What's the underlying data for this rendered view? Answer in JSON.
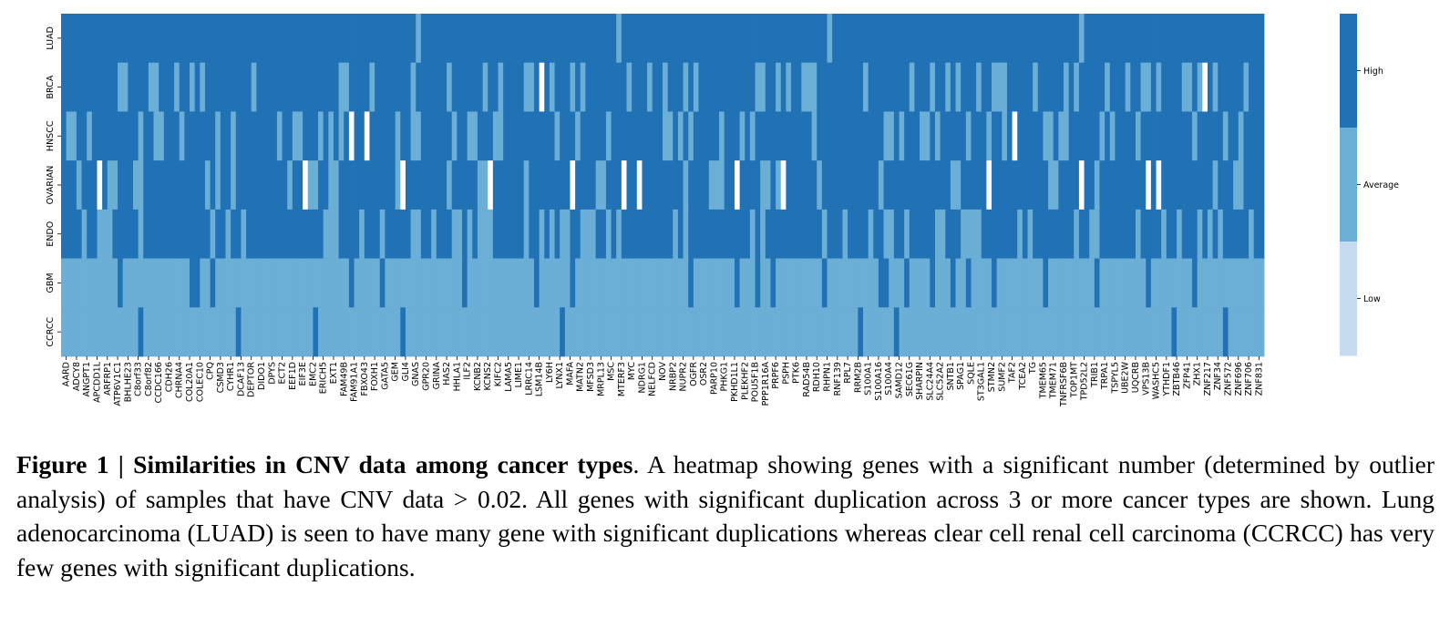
{
  "chart_data": {
    "type": "heatmap",
    "title": "",
    "rows": [
      "LUAD",
      "BRCA",
      "HNSCC",
      "OVARIAN",
      "ENDO",
      "GBM",
      "CCRCC"
    ],
    "columns": [
      "AARD",
      "ADCY8",
      "ANGPT1",
      "APCDD1L",
      "ARFRP1",
      "ATP6V1C1",
      "BHLHE23",
      "C8orf33",
      "C8orf82",
      "CCDC166",
      "CDH26",
      "CHRNA4",
      "COL20A1",
      "COLEC10",
      "CPQ",
      "CSMD3",
      "CYHR1",
      "DCAF13",
      "DEPTOR",
      "DIDO1",
      "DPYS",
      "ECT2",
      "EEF1D",
      "EIF3E",
      "EMC2",
      "ERICH5",
      "EXT1",
      "FAM49B",
      "FAM91A1",
      "FBXO43",
      "FOXH1",
      "GATA5",
      "GEM",
      "GLI4",
      "GNAS",
      "GPR20",
      "GRINA",
      "HAS2",
      "HHLA1",
      "ILF2",
      "KCNB2",
      "KCNS2",
      "KIFC2",
      "LAMA5",
      "LIME1",
      "LRRC14",
      "LSM14B",
      "LY6H",
      "LYNX1",
      "MAFA",
      "MATN2",
      "MFSD3",
      "MRPL13",
      "MSC",
      "MTERF3",
      "MYC",
      "NDRG1",
      "NELFCD",
      "NOV",
      "NRBP2",
      "NUPR2",
      "OGFR",
      "OSR2",
      "PARP10",
      "PHKG1",
      "PKHD1L1",
      "PLEKHF2",
      "POU5F1B",
      "PPP1R16A",
      "PRPF6",
      "PSPH",
      "PTK6",
      "RAD54B",
      "RDH10",
      "RHPN1",
      "RNF139",
      "RPL7",
      "RRM2B",
      "S100A1",
      "S100A16",
      "S100A4",
      "SAMD12",
      "SEC61G",
      "SHARPIN",
      "SLC24A4",
      "SLC52A2",
      "SNTB1",
      "SPAG1",
      "SQLE",
      "ST3GAL1",
      "STMN2",
      "SUMF2",
      "TAF2",
      "TCEA2",
      "TG",
      "TMEM65",
      "TMEM71",
      "TNFRSF6B",
      "TOP1MT",
      "TPD52L2",
      "TRIB1",
      "TRPA1",
      "TSPYL5",
      "UBE2W",
      "UQCRB",
      "VPS13B",
      "WASHC5",
      "YTHDF1",
      "ZBTB46",
      "ZFP41",
      "ZHX1",
      "ZNF217",
      "ZNF34",
      "ZNF572",
      "ZNF696",
      "ZNF706",
      "ZNF831"
    ],
    "colorbar": {
      "labels": [
        "High",
        "Average",
        "Low"
      ]
    },
    "colors": {
      "high": "#2171b5",
      "average": "#6baed6",
      "low": "#c6dbef",
      "none": "#ffffff"
    }
  },
  "caption": {
    "bold": "Figure 1 | Similarities in CNV data among cancer types",
    "text": ". A heatmap showing genes with a significant number (determined by outlier analysis) of samples that have CNV data > 0.02.  All genes with significant duplication across 3 or more cancer types are shown. Lung adenocarcinoma (LUAD) is seen to have many gene with significant duplications whereas clear cell renal cell carcinoma (CCRCC) has very few genes with significant duplications."
  }
}
